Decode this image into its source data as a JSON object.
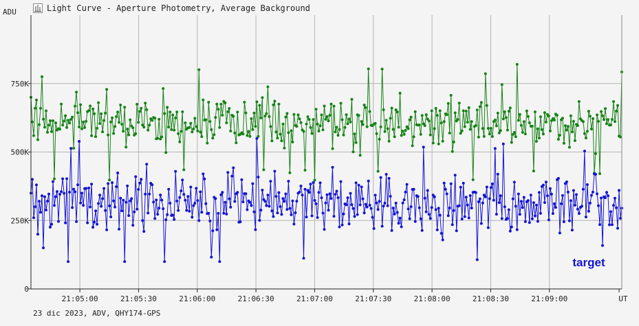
{
  "window": {
    "title": "Light Curve - Aperture Photometry, Average Background"
  },
  "footer_text": "23 dic 2023, ADV, QHY174-GPS",
  "chart_data": {
    "type": "line",
    "title": "Light Curve - Aperture Photometry, Average Background",
    "ylabel": "ADU",
    "xlabel": "UT",
    "ylim": [
      0,
      1000000
    ],
    "yticks": [
      0,
      250000,
      500000,
      750000
    ],
    "ytick_labels": [
      "0",
      "250K",
      "500K",
      "750K"
    ],
    "x_start": "21:04:35",
    "x_end": "21:09:37",
    "xticks": [
      "21:05:00",
      "21:05:30",
      "21:06:00",
      "21:06:30",
      "21:07:00",
      "21:07:30",
      "21:08:00",
      "21:08:30",
      "21:09:00"
    ],
    "grid": true,
    "legend_placement": "bottom-right",
    "colors": {
      "green_series": "#168216",
      "blue_series": "#1414d2",
      "grid": "#b4b4b4",
      "axis": "#222222"
    },
    "series": [
      {
        "name": "",
        "color": "#168216",
        "x_range": [
          "21:04:35",
          "21:09:37"
        ],
        "point_count": 430,
        "mean": 610000,
        "min": 390000,
        "max": 820000,
        "sample_values": [
          700000,
          610000,
          560000,
          660000,
          690000,
          545000,
          600000,
          660000,
          775000,
          620000
        ]
      },
      {
        "name": "target",
        "color": "#1414d2",
        "x_range": [
          "21:04:35",
          "21:09:37"
        ],
        "point_count": 430,
        "mean": 315000,
        "min": 100000,
        "max": 570000,
        "sample_values": [
          350000,
          400000,
          260000,
          300000,
          380000,
          200000,
          320000,
          280000,
          340000,
          150000
        ]
      }
    ]
  }
}
